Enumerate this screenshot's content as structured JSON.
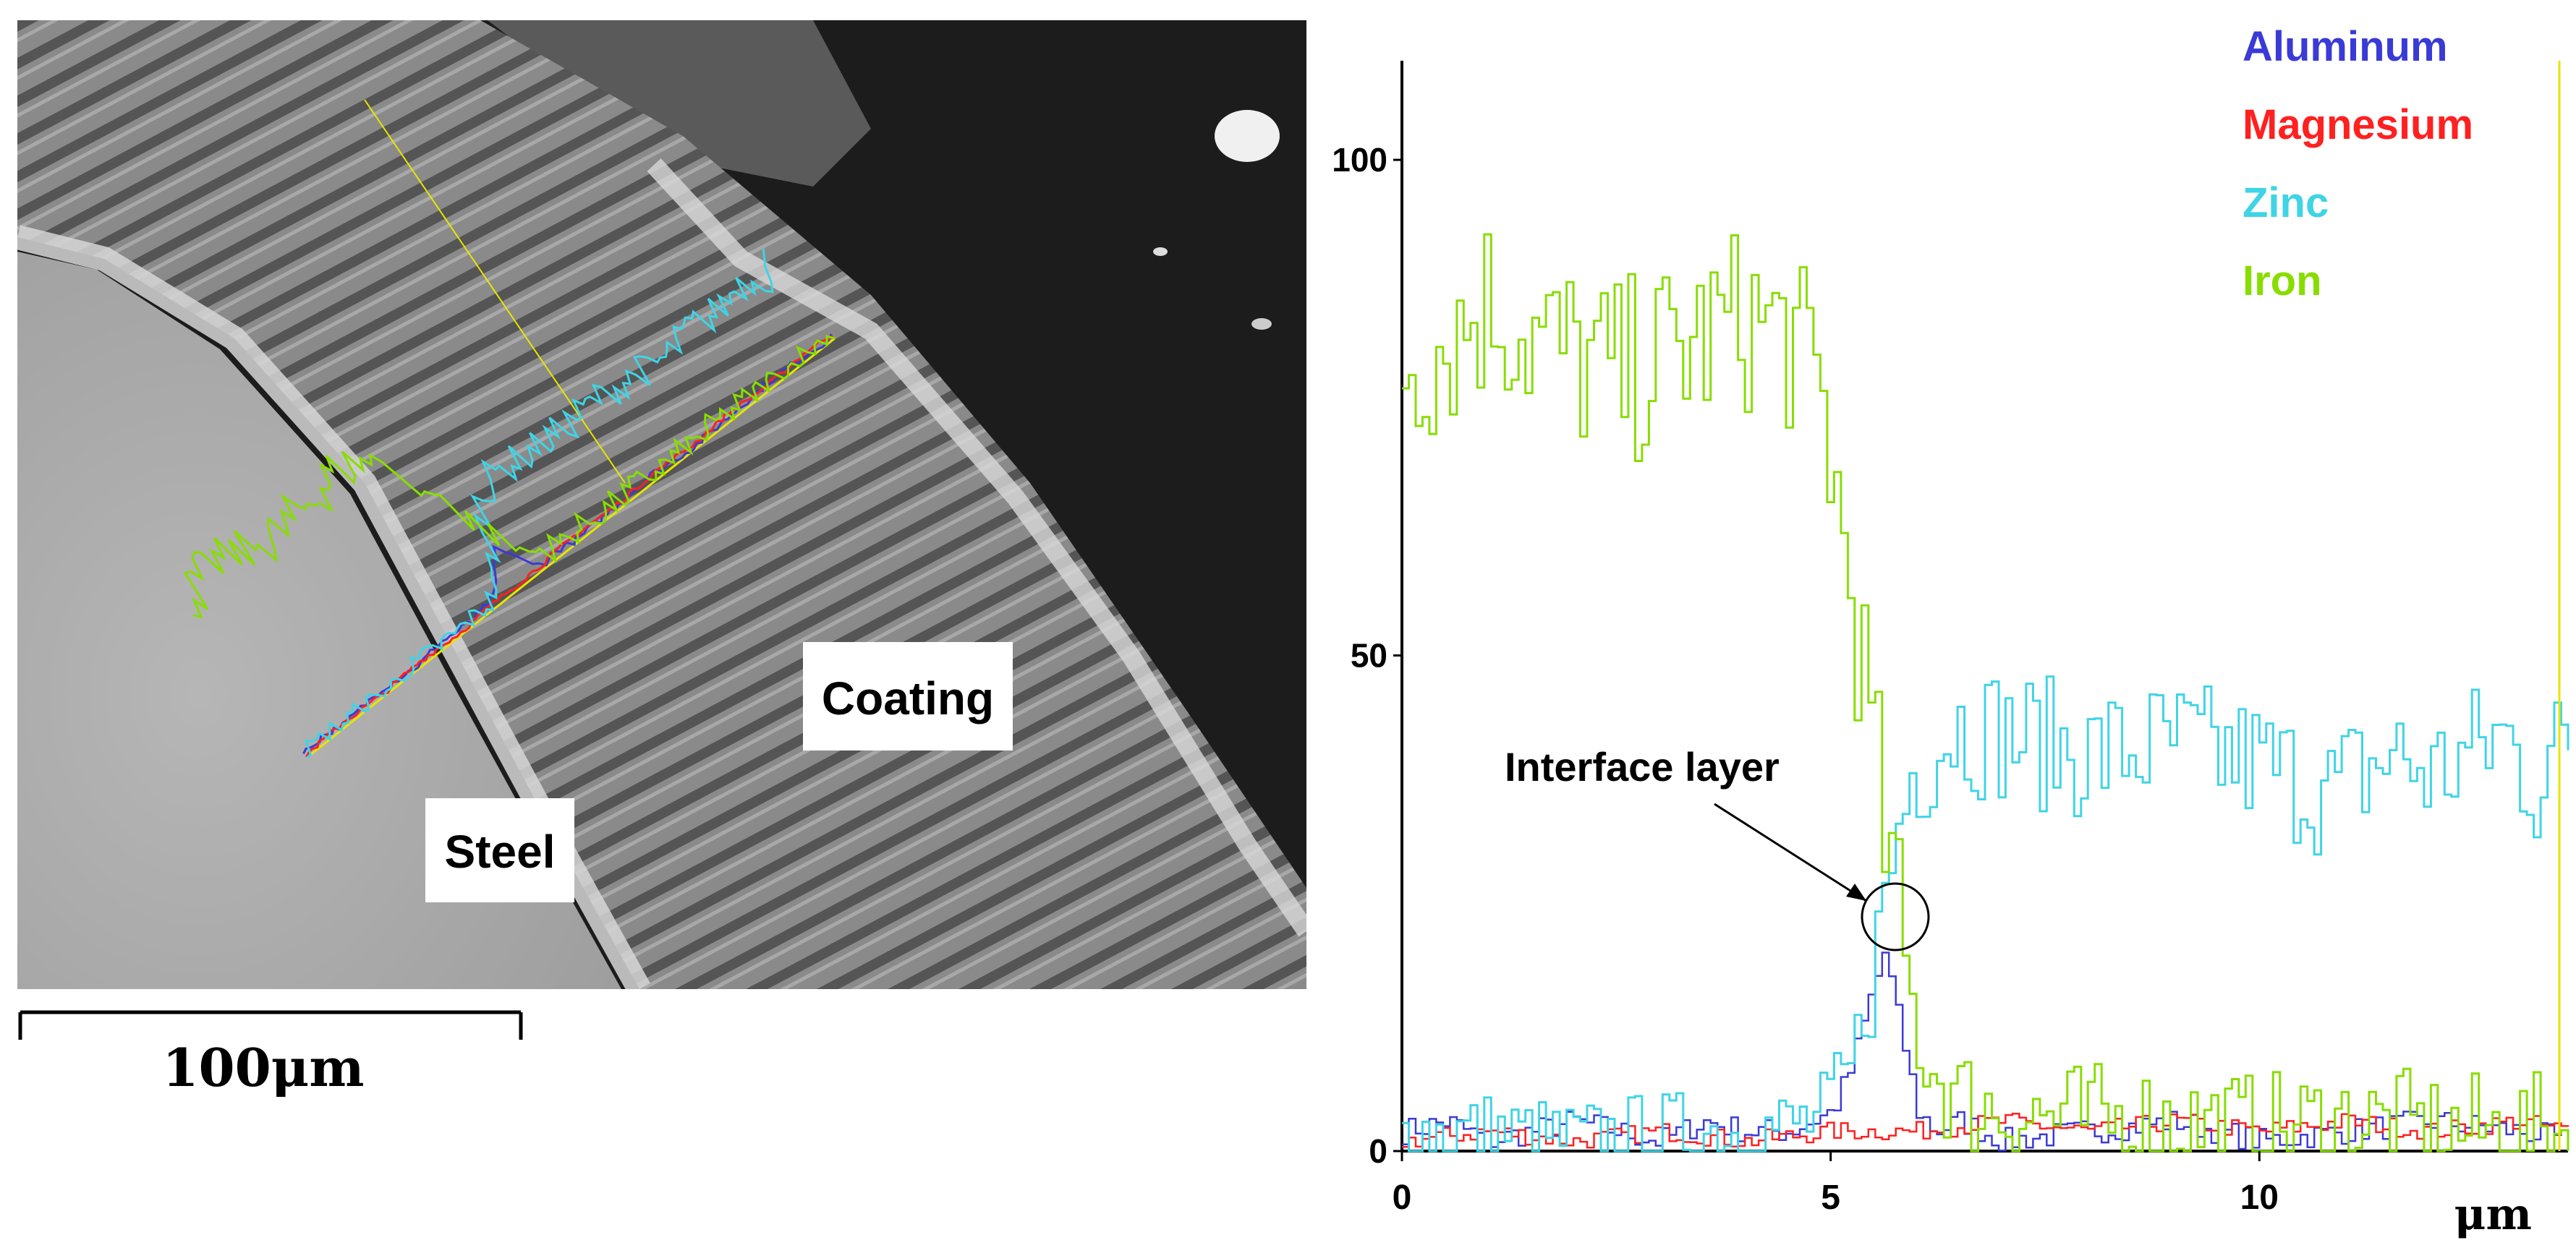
{
  "figure": {
    "micrograph_labels": {
      "coating": "Coating",
      "steel": "Steel"
    },
    "scale_bar": {
      "label": "100μm"
    }
  },
  "chart_data": {
    "type": "line",
    "title": "",
    "xlabel": "μm",
    "ylabel": "",
    "xlim": [
      0,
      13.6
    ],
    "ylim": [
      0,
      110
    ],
    "x_ticks": [
      "0",
      "5",
      "10"
    ],
    "y_ticks": [
      "0",
      "50",
      "100"
    ],
    "legend_position": "top-right",
    "annotation": "Interface layer",
    "step_um": 0.2,
    "series": [
      {
        "name": "Aluminum",
        "color": "#3a3ad6",
        "x": [
          0,
          0.5,
          1,
          1.5,
          2,
          2.5,
          3,
          3.5,
          4,
          4.5,
          5,
          5.2,
          5.4,
          5.6,
          5.8,
          6.0,
          6.2,
          6.5,
          7,
          8,
          9,
          10,
          11,
          12,
          13,
          13.6
        ],
        "y": [
          2,
          3,
          1,
          2,
          3,
          2,
          1,
          3,
          2,
          2,
          4,
          8,
          14,
          20,
          12,
          4,
          2,
          3,
          1,
          2,
          3,
          1,
          2,
          3,
          2,
          1
        ]
      },
      {
        "name": "Magnesium",
        "color": "#ff2020",
        "x": [
          0,
          1,
          2,
          3,
          4,
          5,
          6,
          7,
          8,
          9,
          10,
          11,
          12,
          13,
          13.6
        ],
        "y": [
          1,
          2,
          1,
          2,
          1,
          2,
          2,
          3,
          2,
          3,
          2,
          3,
          2,
          3,
          2
        ]
      },
      {
        "name": "Zinc",
        "color": "#3fd4e6",
        "x": [
          0,
          1,
          2,
          3,
          4,
          4.8,
          5.2,
          5.5,
          5.7,
          5.9,
          6.1,
          6.4,
          7,
          8,
          9,
          10,
          10.8,
          11.5,
          12,
          12.8,
          13.2,
          13.6
        ],
        "y": [
          2,
          2,
          1,
          2,
          2,
          3,
          8,
          20,
          30,
          38,
          40,
          43,
          42,
          40,
          41,
          39,
          36,
          40,
          38,
          42,
          37,
          42
        ]
      },
      {
        "name": "Iron",
        "color": "#88dd00",
        "x": [
          0,
          0.5,
          1,
          1.5,
          2,
          2.5,
          3,
          3.5,
          4,
          4.5,
          4.9,
          5.1,
          5.3,
          5.5,
          5.7,
          5.9,
          6.1,
          6.5,
          7,
          8,
          9,
          10,
          11,
          12,
          13,
          13.6
        ],
        "y": [
          80,
          82,
          86,
          82,
          80,
          78,
          80,
          82,
          84,
          82,
          75,
          62,
          52,
          38,
          26,
          15,
          9,
          5,
          4,
          3,
          3,
          2,
          3,
          2,
          2,
          2
        ]
      }
    ]
  }
}
